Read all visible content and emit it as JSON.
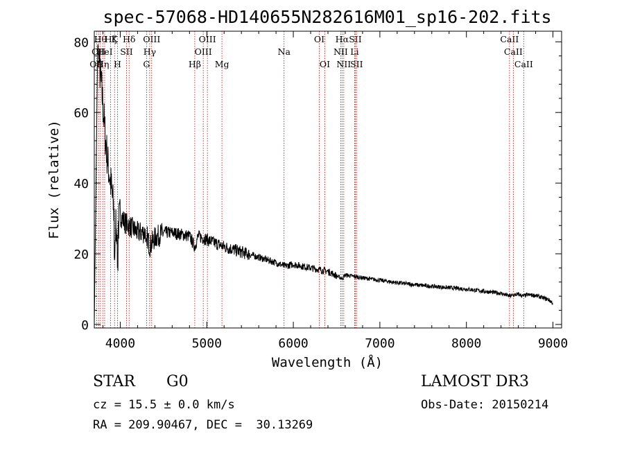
{
  "chart_data": {
    "type": "line",
    "title": "spec-57068-HD140655N282616M01_sp16-202.fits",
    "xlabel": "Wavelength (Å)",
    "ylabel": "Flux (relative)",
    "xlim": [
      3700,
      9100
    ],
    "ylim": [
      -1,
      83
    ],
    "xticks": [
      4000,
      5000,
      6000,
      7000,
      8000,
      9000
    ],
    "yticks": [
      0,
      20,
      40,
      60,
      80
    ],
    "spectrum_anchors": {
      "x": [
        3700,
        3740,
        3760,
        3780,
        3800,
        3830,
        3860,
        3900,
        3935,
        3970,
        4000,
        4050,
        4100,
        4200,
        4300,
        4340,
        4400,
        4500,
        4600,
        4700,
        4800,
        4861,
        4900,
        5000,
        5100,
        5200,
        5400,
        5600,
        5800,
        5900,
        6000,
        6200,
        6400,
        6563,
        6600,
        6800,
        7000,
        7200,
        7500,
        8000,
        8400,
        8498,
        8542,
        8600,
        8662,
        8700,
        8800,
        8950,
        9000
      ],
      "y": [
        0,
        80,
        73,
        68,
        62,
        52,
        45,
        38,
        30,
        27,
        31,
        29,
        28,
        26,
        26,
        22,
        24.5,
        26,
        26,
        25.5,
        25,
        22,
        25,
        24,
        23,
        22,
        20.5,
        19,
        17.5,
        16.5,
        17,
        16,
        15,
        13,
        14,
        13.2,
        12.5,
        11.8,
        11,
        10,
        8.8,
        8,
        8.3,
        8.5,
        8,
        8.4,
        8.2,
        7,
        6
      ]
    },
    "line_markers": [
      {
        "wavelength": 3727,
        "label": "OII",
        "row": 2
      },
      {
        "wavelength": 3750,
        "label": "OII",
        "row": 1
      },
      {
        "wavelength": 3771,
        "label": "Hθ",
        "row": 0
      },
      {
        "wavelength": 3798,
        "label": "Hη",
        "row": 2
      },
      {
        "wavelength": 3820,
        "label": "HeI",
        "row": 1
      },
      {
        "wavelength": 3889,
        "label": "Hζ",
        "row": 0
      },
      {
        "wavelength": 3934,
        "label": "K",
        "row": 0
      },
      {
        "wavelength": 3968,
        "label": "H",
        "row": 2
      },
      {
        "wavelength": 4072,
        "label": "SII",
        "row": 1
      },
      {
        "wavelength": 4102,
        "label": "Hδ",
        "row": 0
      },
      {
        "wavelength": 4304,
        "label": "G",
        "row": 2
      },
      {
        "wavelength": 4340,
        "label": "Hγ",
        "row": 1
      },
      {
        "wavelength": 4363,
        "label": "OIII",
        "row": 0
      },
      {
        "wavelength": 4861,
        "label": "Hβ",
        "row": 2
      },
      {
        "wavelength": 4959,
        "label": "OIII",
        "row": 1
      },
      {
        "wavelength": 5007,
        "label": "OIII",
        "row": 0
      },
      {
        "wavelength": 5175,
        "label": "Mg",
        "row": 2
      },
      {
        "wavelength": 5893,
        "label": "Na",
        "row": 1
      },
      {
        "wavelength": 6300,
        "label": "OI",
        "row": 0
      },
      {
        "wavelength": 6364,
        "label": "OI",
        "row": 2
      },
      {
        "wavelength": 6548,
        "label": "NII",
        "row": 1
      },
      {
        "wavelength": 6563,
        "label": "Hα",
        "row": 0
      },
      {
        "wavelength": 6583,
        "label": "NII",
        "row": 2
      },
      {
        "wavelength": 6708,
        "label": "Li",
        "row": 1
      },
      {
        "wavelength": 6716,
        "label": "SII",
        "row": 0
      },
      {
        "wavelength": 6731,
        "label": "SII",
        "row": 2
      },
      {
        "wavelength": 8498,
        "label": "CaII",
        "row": 0
      },
      {
        "wavelength": 8542,
        "label": "CaII",
        "row": 1
      },
      {
        "wavelength": 8662,
        "label": "CaII",
        "row": 2
      }
    ],
    "colors": {
      "spectrum": "#000000",
      "markers": "#c00000",
      "axes": "#000000"
    }
  },
  "info": {
    "object_class": "STAR",
    "subclass": "G0",
    "survey": "LAMOST DR3",
    "cz": "cz = 15.5 ± 0.0 km/s",
    "obs_date": "Obs-Date: 20150214",
    "coords": "RA = 209.90467, DEC =  30.13269"
  }
}
